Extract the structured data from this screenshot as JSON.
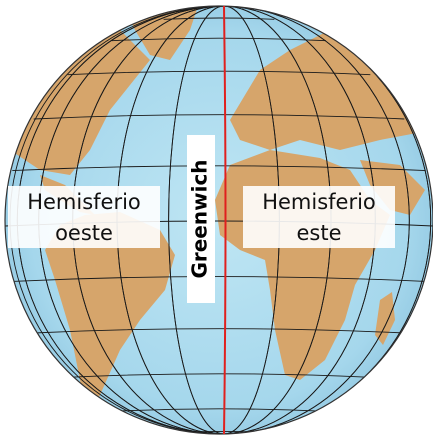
{
  "labels": {
    "west": [
      "Hemisferio",
      "oeste"
    ],
    "east": [
      "Hemisferio",
      "este"
    ],
    "meridian": "Greenwich"
  }
}
